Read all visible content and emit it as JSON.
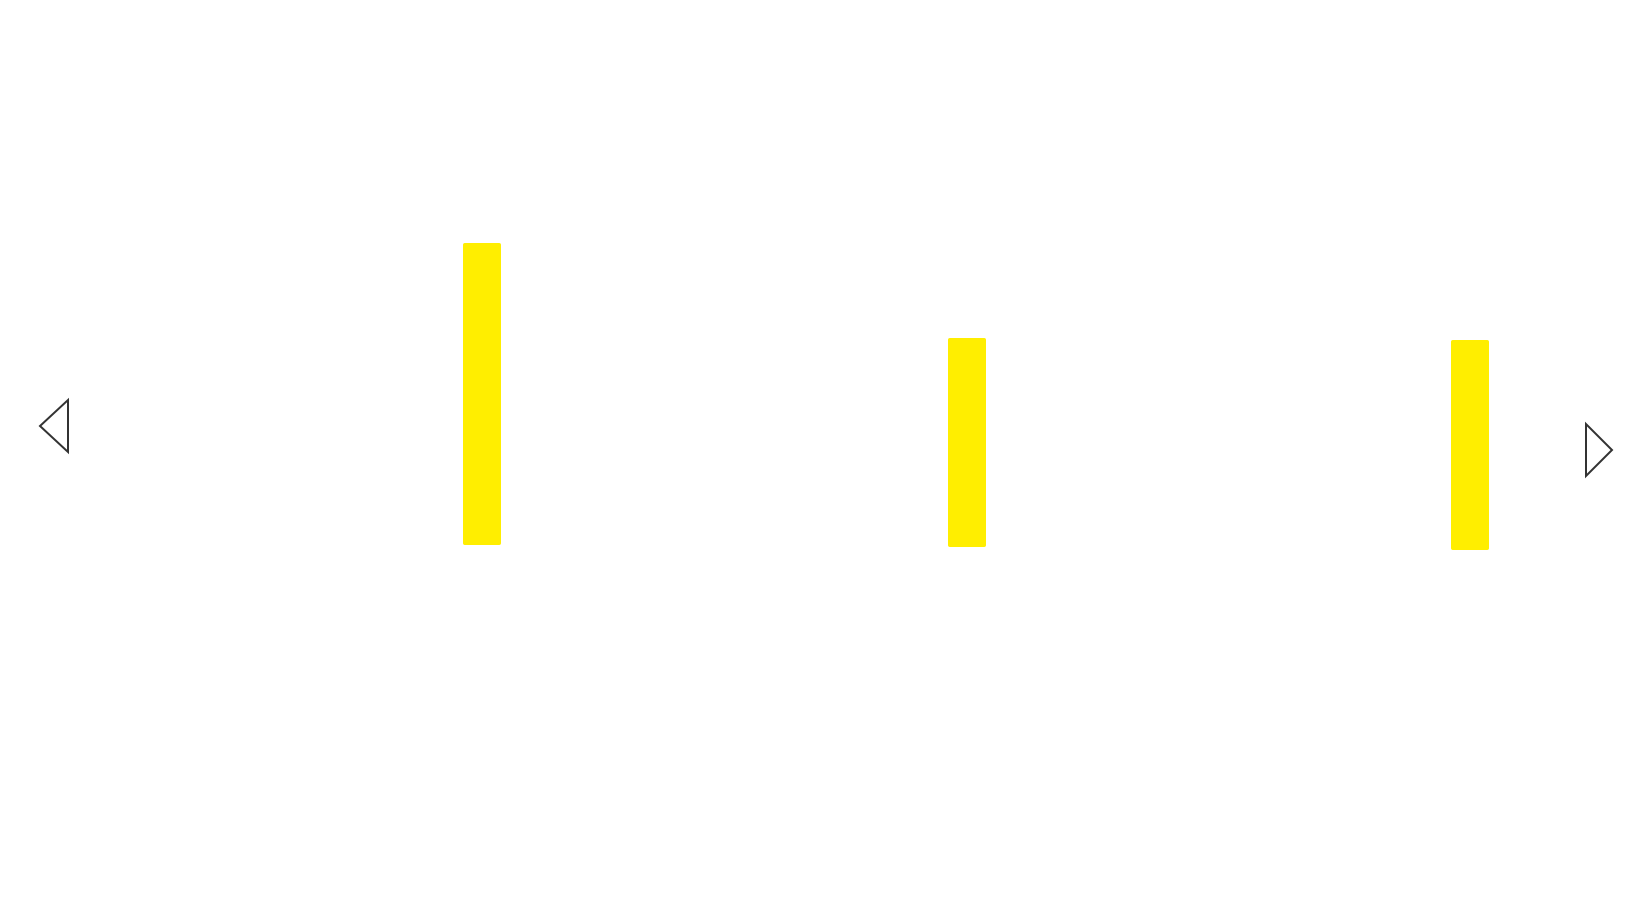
{
  "carousel": {
    "prev_icon": "chevron-left-outline-icon",
    "next_icon": "chevron-right-outline-icon",
    "accent_color": "#ffee00",
    "panels": [
      {
        "heading": "",
        "caption": "",
        "glyph": ""
      },
      {
        "heading": "",
        "caption": "",
        "glyph": ""
      },
      {
        "heading": "",
        "caption": "",
        "glyph": ""
      }
    ]
  }
}
